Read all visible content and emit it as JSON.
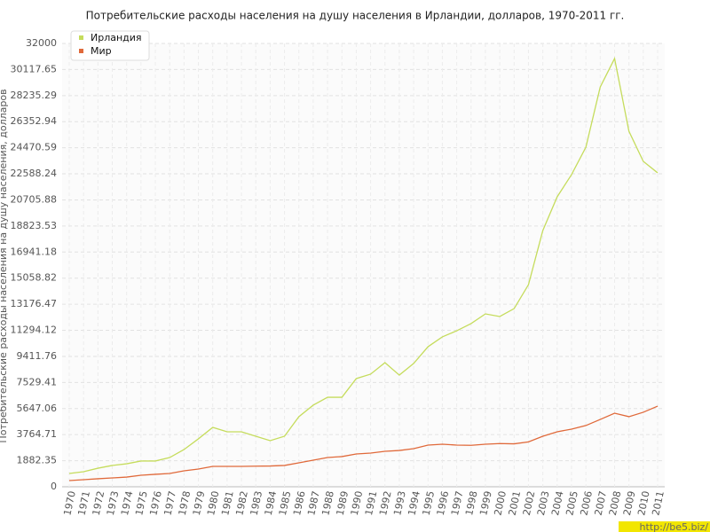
{
  "chart_data": {
    "type": "line",
    "title": "Потребительские расходы населения на душу населения в Ирландии, долларов, 1970-2011 гг.",
    "y_label": "Потребительские расходы населения на душу населения, долларов",
    "watermark": "http://be5.biz/",
    "categories": [
      "1970",
      "1971",
      "1972",
      "1973",
      "1974",
      "1975",
      "1976",
      "1977",
      "1978",
      "1979",
      "1980",
      "1981",
      "1982",
      "1983",
      "1984",
      "1985",
      "1986",
      "1987",
      "1988",
      "1989",
      "1990",
      "1991",
      "1992",
      "1993",
      "1994",
      "1995",
      "1996",
      "1997",
      "1998",
      "1999",
      "2000",
      "2001",
      "2002",
      "2003",
      "2004",
      "2005",
      "2006",
      "2007",
      "2008",
      "2009",
      "2010",
      "2011"
    ],
    "series": [
      {
        "name": "Ирландия",
        "color": "#c5dc5c",
        "values": [
          960,
          1090,
          1340,
          1540,
          1660,
          1860,
          1860,
          2110,
          2690,
          3460,
          4290,
          3970,
          3970,
          3650,
          3330,
          3650,
          5060,
          5890,
          6460,
          6460,
          7810,
          8130,
          8960,
          8060,
          8900,
          10110,
          10820,
          11260,
          11780,
          12480,
          12290,
          12860,
          14590,
          18500,
          20930,
          22530,
          24510,
          28860,
          30910,
          25660,
          23490,
          22660
        ]
      },
      {
        "name": "Мир",
        "color": "#e0693a",
        "values": [
          450,
          510,
          580,
          640,
          700,
          830,
          900,
          960,
          1150,
          1280,
          1470,
          1470,
          1470,
          1490,
          1500,
          1540,
          1730,
          1920,
          2110,
          2180,
          2370,
          2430,
          2560,
          2620,
          2750,
          3010,
          3070,
          3010,
          2990,
          3070,
          3120,
          3100,
          3240,
          3650,
          3970,
          4160,
          4420,
          4860,
          5310,
          5060,
          5380,
          5820
        ]
      }
    ],
    "ylim": [
      0,
      32000
    ],
    "yticks": [
      0,
      1882.35,
      3764.71,
      5647.06,
      7529.41,
      9411.76,
      11294.12,
      13176.47,
      15058.82,
      16941.18,
      18823.53,
      20705.88,
      22588.24,
      24470.59,
      26352.94,
      28235.29,
      30117.65,
      32000
    ],
    "grid": true,
    "legend": "upper left"
  }
}
